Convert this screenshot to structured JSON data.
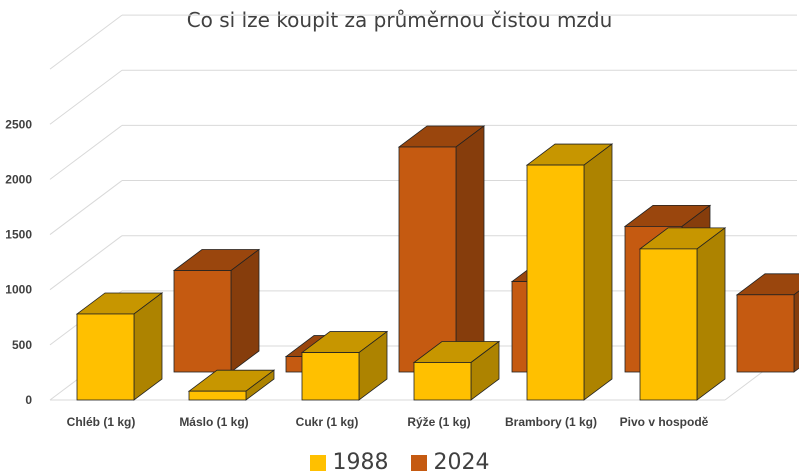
{
  "chart_data": {
    "type": "bar",
    "title": "Co si lze koupit za průměrnou čistou mzdu",
    "categories": [
      "Chléb (1 kg)",
      "Máslo (1 kg)",
      "Cukr (1 kg)",
      "Rýže (1 kg)",
      "Brambory (1 kg)",
      "Pivo v hospodě"
    ],
    "series": [
      {
        "name": "1988",
        "values": [
          780,
          80,
          430,
          340,
          2130,
          1370
        ],
        "color": "#FFC000"
      },
      {
        "name": "2024",
        "values": [
          920,
          140,
          2040,
          820,
          1320,
          700
        ],
        "color": "#C55A11"
      }
    ],
    "ylim": [
      0,
      3000
    ],
    "yticks": [
      "0",
      "500",
      "1000",
      "1500",
      "2000",
      "2500"
    ],
    "grid": true,
    "legend_position": "bottom"
  }
}
